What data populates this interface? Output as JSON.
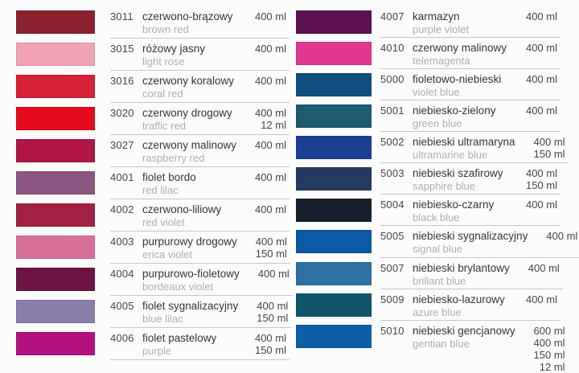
{
  "page": {
    "background": "#fcfcfc",
    "separator_color": "#c6c6c6",
    "text_color_primary": "#353535",
    "text_color_secondary": "#aeaeae"
  },
  "columns": [
    {
      "rows": [
        {
          "code": "3011",
          "name_pl": "czerwono-brązowy",
          "name_en": "brown red",
          "volumes": [
            "400 ml"
          ],
          "swatch_color": "#8c2130"
        },
        {
          "code": "3015",
          "name_pl": "różowy jasny",
          "name_en": "light rose",
          "volumes": [
            "400 ml"
          ],
          "swatch_color": "#f0a3b2"
        },
        {
          "code": "3016",
          "name_pl": "czerwony koralowy",
          "name_en": "coral red",
          "volumes": [
            "400 ml"
          ],
          "swatch_color": "#d62137"
        },
        {
          "code": "3020",
          "name_pl": "czerwony drogowy",
          "name_en": "traffic red",
          "volumes": [
            "400 ml",
            "12 ml"
          ],
          "swatch_color": "#e40a1c"
        },
        {
          "code": "3027",
          "name_pl": "czerwony malinowy",
          "name_en": "raspberry red",
          "volumes": [
            "400 ml"
          ],
          "swatch_color": "#b11647"
        },
        {
          "code": "4001",
          "name_pl": "fiolet bordo",
          "name_en": "red lilac",
          "volumes": [
            "400 ml"
          ],
          "swatch_color": "#8a5680"
        },
        {
          "code": "4002",
          "name_pl": "czerwono-liliowy",
          "name_en": "red violet",
          "volumes": [
            "400 ml"
          ],
          "swatch_color": "#a32045"
        },
        {
          "code": "4003",
          "name_pl": "purpurowy drogowy",
          "name_en": "erica violet",
          "volumes": [
            "400 ml",
            "150 ml"
          ],
          "swatch_color": "#d76f99"
        },
        {
          "code": "4004",
          "name_pl": "purpurowo-fioletowy",
          "name_en": "bordeaux violet",
          "volumes": [
            "400 ml"
          ],
          "swatch_color": "#6d1540"
        },
        {
          "code": "4005",
          "name_pl": "fiolet sygnalizacyjny",
          "name_en": "blue lilac",
          "volumes": [
            "400 ml",
            "150 ml"
          ],
          "swatch_color": "#8b7dac"
        },
        {
          "code": "4006",
          "name_pl": "fiolet pastelowy",
          "name_en": "purple",
          "volumes": [
            "400 ml",
            "150 ml"
          ],
          "swatch_color": "#b5107f"
        }
      ]
    },
    {
      "rows": [
        {
          "code": "4007",
          "name_pl": "karmazyn",
          "name_en": "purple violet",
          "volumes": [
            "400 ml"
          ],
          "swatch_color": "#5c1150"
        },
        {
          "code": "4010",
          "name_pl": "czerwony malinowy",
          "name_en": "telemagenta",
          "volumes": [
            "400 ml"
          ],
          "swatch_color": "#e0398f"
        },
        {
          "code": "5000",
          "name_pl": "fioletowo-niebieski",
          "name_en": "violet blue",
          "volumes": [
            "400 ml"
          ],
          "swatch_color": "#134f7e"
        },
        {
          "code": "5001",
          "name_pl": "niebiesko-zielony",
          "name_en": "green blue",
          "volumes": [
            "400 ml"
          ],
          "swatch_color": "#1d5c6f"
        },
        {
          "code": "5002",
          "name_pl": "niebieski ultramaryna",
          "name_en": "ultramarine blue",
          "volumes": [
            "400 ml",
            "150 ml"
          ],
          "swatch_color": "#1c3e92"
        },
        {
          "code": "5003",
          "name_pl": "niebieski szafirowy",
          "name_en": "sapphire blue",
          "volumes": [
            "400 ml",
            "150 ml"
          ],
          "swatch_color": "#243a5f"
        },
        {
          "code": "5004",
          "name_pl": "niebiesko-czarny",
          "name_en": "black blue",
          "volumes": [
            "400 ml"
          ],
          "swatch_color": "#16212d"
        },
        {
          "code": "5005",
          "name_pl": "niebieski sygnalizacyjny",
          "name_en": "signal blue",
          "volumes": [
            "400 ml"
          ],
          "swatch_color": "#0c59a6"
        },
        {
          "code": "5007",
          "name_pl": "niebieski brylantowy",
          "name_en": "brillant blue",
          "volumes": [
            "400 ml"
          ],
          "swatch_color": "#2e72a5"
        },
        {
          "code": "5009",
          "name_pl": "niebiesko-lazurowy",
          "name_en": "azure blue",
          "volumes": [
            "400 ml"
          ],
          "swatch_color": "#10556a"
        },
        {
          "code": "5010",
          "name_pl": "niebieski gencjanowy",
          "name_en": "gentian blue",
          "volumes": [
            "600 ml",
            "400 ml",
            "150 ml",
            "12 ml"
          ],
          "swatch_color": "#0e5da8"
        }
      ]
    }
  ]
}
